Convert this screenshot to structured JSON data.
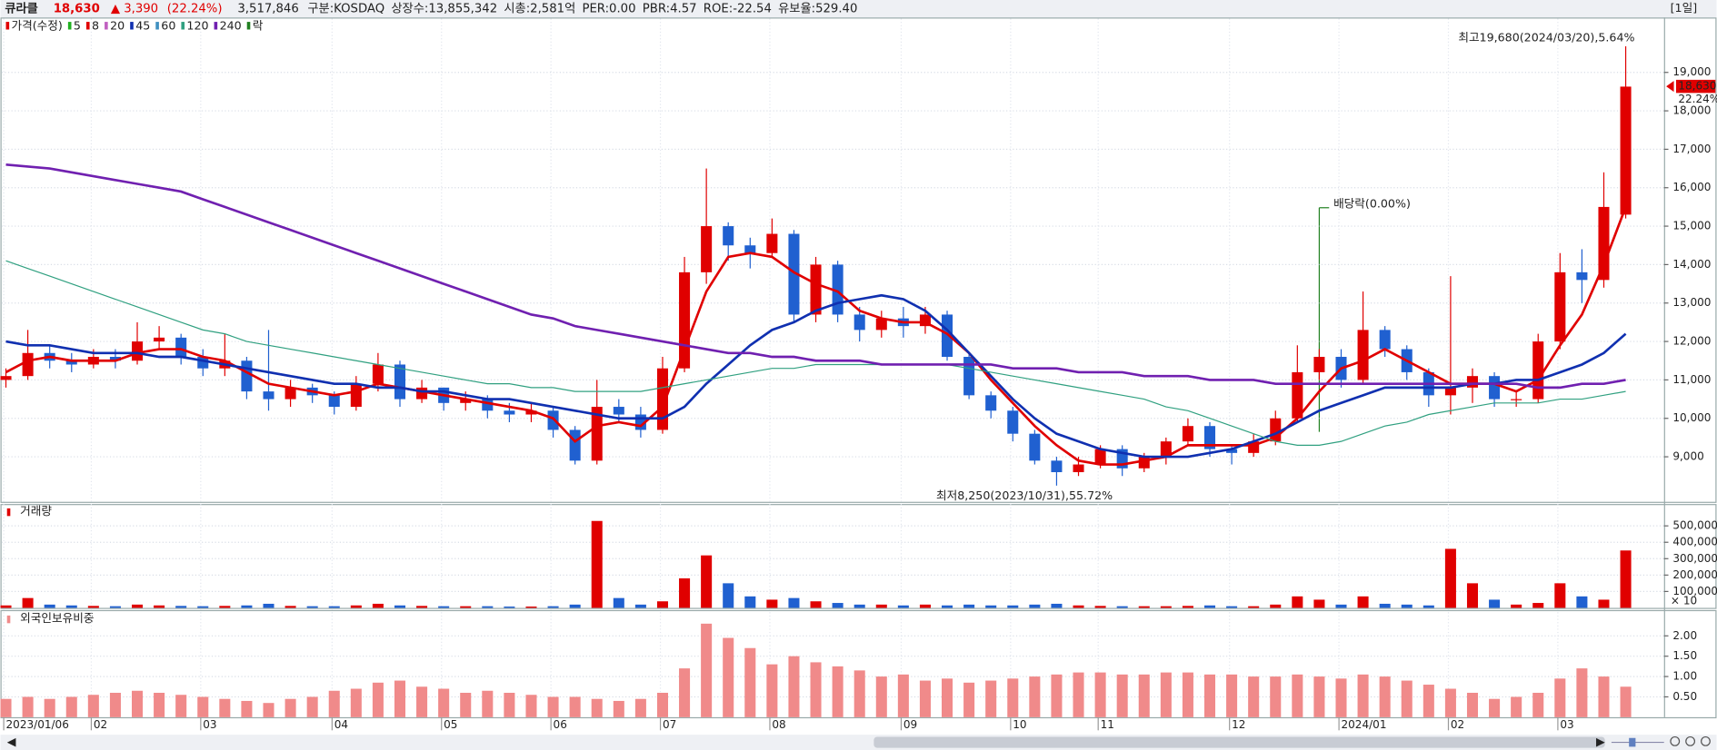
{
  "header": {
    "name": "큐라클",
    "price": "18,630",
    "change": "▲ 3,390",
    "change_pct": "(22.24%)",
    "volume": "3,517,846",
    "market": "구분:KOSDAQ",
    "shares": "상장수:13,855,342",
    "cap": "시총:2,581억",
    "per": "PER:0.00",
    "pbr": "PBR:4.57",
    "roe": "ROE:-22.54",
    "reserve": "유보율:529.40",
    "period": "[1일]"
  },
  "chart_data": [
    {
      "type": "candlestick",
      "legend_label": "가격(수정)",
      "ex_label": "락",
      "categories": [
        "2023/01/06",
        null,
        null,
        null,
        "02",
        null,
        null,
        null,
        null,
        "03",
        null,
        null,
        null,
        null,
        null,
        "04",
        null,
        null,
        null,
        null,
        "05",
        null,
        null,
        null,
        null,
        "06",
        null,
        null,
        null,
        null,
        "07",
        null,
        null,
        null,
        null,
        "08",
        null,
        null,
        null,
        null,
        null,
        "09",
        null,
        null,
        null,
        null,
        "10",
        null,
        null,
        null,
        "11",
        null,
        null,
        null,
        null,
        null,
        "12",
        null,
        null,
        null,
        null,
        "2024/01",
        null,
        null,
        null,
        null,
        "02",
        null,
        null,
        null,
        null,
        "03",
        null,
        null,
        null
      ],
      "open": [
        11000,
        11100,
        11700,
        11500,
        11400,
        11600,
        11500,
        12000,
        12100,
        11600,
        11300,
        11500,
        10700,
        10500,
        10800,
        10600,
        10300,
        10900,
        11400,
        10500,
        10800,
        10400,
        10500,
        10200,
        10100,
        10200,
        9700,
        8900,
        10300,
        10100,
        9700,
        11300,
        13800,
        15000,
        14500,
        14300,
        14800,
        12700,
        14000,
        12700,
        12300,
        12600,
        12400,
        12700,
        11600,
        10600,
        10200,
        9600,
        8900,
        8600,
        8800,
        9200,
        8700,
        9000,
        9400,
        9800,
        9200,
        9100,
        9400,
        10000,
        11200,
        11600,
        11000,
        12300,
        11800,
        11200,
        10600,
        10800,
        11100,
        10500,
        10500,
        12000,
        13800,
        13600,
        15300
      ],
      "high": [
        11300,
        12300,
        11900,
        11700,
        11800,
        11800,
        12500,
        12400,
        12200,
        11800,
        12200,
        11600,
        12300,
        11000,
        10900,
        10700,
        11100,
        11700,
        11500,
        11000,
        10800,
        10700,
        10600,
        10400,
        10400,
        10300,
        9800,
        11000,
        10500,
        10300,
        11600,
        14200,
        16500,
        15100,
        14700,
        15200,
        14900,
        14200,
        14100,
        12900,
        12800,
        12900,
        12900,
        12800,
        11700,
        10700,
        10300,
        9700,
        9000,
        9000,
        9300,
        9300,
        9100,
        9500,
        10000,
        9900,
        9300,
        9600,
        10200,
        11900,
        11800,
        11800,
        13300,
        12400,
        11900,
        11300,
        13700,
        11300,
        11200,
        10700,
        12200,
        14300,
        14400,
        16400,
        19680
      ],
      "low": [
        10800,
        11000,
        11300,
        11200,
        11300,
        11300,
        11400,
        11800,
        11400,
        11100,
        11100,
        10500,
        10200,
        10300,
        10400,
        10100,
        10200,
        10700,
        10300,
        10400,
        10200,
        10200,
        10000,
        9900,
        9900,
        9500,
        8800,
        8800,
        9900,
        9500,
        9600,
        11200,
        13500,
        14100,
        13900,
        14200,
        12500,
        12500,
        12500,
        12000,
        12100,
        12100,
        12200,
        11500,
        10500,
        10000,
        9400,
        8800,
        8250,
        8500,
        8700,
        8500,
        8600,
        8800,
        9300,
        9000,
        8800,
        9000,
        9300,
        9900,
        11000,
        10800,
        10900,
        11600,
        11000,
        10300,
        10100,
        10400,
        10300,
        10300,
        10400,
        11800,
        13000,
        13400,
        15200
      ],
      "close": [
        11100,
        11700,
        11500,
        11400,
        11600,
        11500,
        12000,
        12100,
        11600,
        11300,
        11500,
        10700,
        10500,
        10800,
        10600,
        10300,
        10900,
        11400,
        10500,
        10800,
        10400,
        10500,
        10200,
        10100,
        10200,
        9700,
        8900,
        10300,
        10100,
        9700,
        11300,
        13800,
        15000,
        14500,
        14300,
        14800,
        12700,
        14000,
        12700,
        12300,
        12600,
        12400,
        12700,
        11600,
        10600,
        10200,
        9600,
        8900,
        8600,
        8800,
        9200,
        8700,
        9000,
        9400,
        9800,
        9200,
        9100,
        9400,
        10000,
        11200,
        11600,
        11000,
        12300,
        11800,
        11200,
        10600,
        10800,
        11100,
        10500,
        10500,
        12000,
        13800,
        13600,
        15500,
        18630
      ],
      "up_color": "#e00000",
      "down_color": "#2060d0",
      "series": [
        {
          "name": "5",
          "color": "#20b020"
        },
        {
          "name": "8",
          "color": "#e00000",
          "width": 2.2,
          "values": [
            11200,
            11500,
            11600,
            11500,
            11500,
            11500,
            11700,
            11800,
            11800,
            11600,
            11500,
            11200,
            10900,
            10800,
            10700,
            10600,
            10700,
            10900,
            10800,
            10700,
            10600,
            10500,
            10400,
            10300,
            10200,
            10000,
            9400,
            9800,
            9900,
            9800,
            10300,
            11800,
            13300,
            14200,
            14300,
            14200,
            13800,
            13500,
            13300,
            12800,
            12600,
            12500,
            12500,
            12200,
            11700,
            11000,
            10400,
            9800,
            9300,
            8900,
            8800,
            8800,
            8900,
            9000,
            9300,
            9300,
            9300,
            9300,
            9500,
            10000,
            10700,
            11300,
            11500,
            11800,
            11500,
            11200,
            10900,
            10900,
            10900,
            10700,
            11000,
            11900,
            12700,
            14000,
            15500
          ]
        },
        {
          "name": "20",
          "color": "#c060c0"
        },
        {
          "name": "45",
          "color": "#1030b0",
          "width": 2.2,
          "values": [
            12000,
            11900,
            11900,
            11800,
            11700,
            11700,
            11700,
            11600,
            11600,
            11500,
            11400,
            11300,
            11200,
            11100,
            11000,
            10900,
            10900,
            10800,
            10800,
            10700,
            10700,
            10600,
            10500,
            10500,
            10400,
            10300,
            10200,
            10100,
            10000,
            10000,
            10000,
            10300,
            10900,
            11400,
            11900,
            12300,
            12500,
            12800,
            13000,
            13100,
            13200,
            13100,
            12800,
            12300,
            11700,
            11100,
            10500,
            10000,
            9600,
            9400,
            9200,
            9100,
            9000,
            9000,
            9000,
            9100,
            9200,
            9400,
            9600,
            9900,
            10200,
            10400,
            10600,
            10800,
            10800,
            10800,
            10800,
            10900,
            10900,
            11000,
            11000,
            11200,
            11400,
            11700,
            12200
          ]
        },
        {
          "name": "60",
          "color": "#4090c0"
        },
        {
          "name": "120",
          "color": "#30a080",
          "width": 1,
          "values": [
            14100,
            13900,
            13700,
            13500,
            13300,
            13100,
            12900,
            12700,
            12500,
            12300,
            12200,
            12000,
            11900,
            11800,
            11700,
            11600,
            11500,
            11400,
            11300,
            11200,
            11100,
            11000,
            10900,
            10900,
            10800,
            10800,
            10700,
            10700,
            10700,
            10700,
            10800,
            10900,
            11000,
            11100,
            11200,
            11300,
            11300,
            11400,
            11400,
            11400,
            11400,
            11400,
            11400,
            11400,
            11300,
            11200,
            11100,
            11000,
            10900,
            10800,
            10700,
            10600,
            10500,
            10300,
            10200,
            10000,
            9800,
            9600,
            9400,
            9300,
            9300,
            9400,
            9600,
            9800,
            9900,
            10100,
            10200,
            10300,
            10400,
            10400,
            10400,
            10500,
            10500,
            10600,
            10700
          ]
        },
        {
          "name": "240",
          "color": "#7020b0",
          "width": 2.2,
          "values": [
            16600,
            16550,
            16500,
            16400,
            16300,
            16200,
            16100,
            16000,
            15900,
            15700,
            15500,
            15300,
            15100,
            14900,
            14700,
            14500,
            14300,
            14100,
            13900,
            13700,
            13500,
            13300,
            13100,
            12900,
            12700,
            12600,
            12400,
            12300,
            12200,
            12100,
            12000,
            11900,
            11800,
            11700,
            11700,
            11600,
            11600,
            11500,
            11500,
            11500,
            11400,
            11400,
            11400,
            11400,
            11400,
            11400,
            11300,
            11300,
            11300,
            11200,
            11200,
            11200,
            11100,
            11100,
            11100,
            11000,
            11000,
            11000,
            10900,
            10900,
            10900,
            10900,
            10900,
            10900,
            10900,
            10900,
            10900,
            10900,
            10900,
            10900,
            10800,
            10800,
            10900,
            10900,
            11000
          ]
        }
      ],
      "ylim": [
        7800,
        20400
      ],
      "yticks": [
        {
          "value": 9000,
          "label": "9,000"
        },
        {
          "value": 10000,
          "label": "10,000"
        },
        {
          "value": 11000,
          "label": "11,000"
        },
        {
          "value": 12000,
          "label": "12,000"
        },
        {
          "value": 13000,
          "label": "13,000"
        },
        {
          "value": 14000,
          "label": "14,000"
        },
        {
          "value": 15000,
          "label": "15,000"
        },
        {
          "value": 16000,
          "label": "16,000"
        },
        {
          "value": 17000,
          "label": "17,000"
        },
        {
          "value": 18000,
          "label": "18,000"
        },
        {
          "value": 19000,
          "label": "19,000"
        }
      ],
      "last_label": "18,630",
      "last_change": "22.24%",
      "annotations": {
        "high": "최고19,680(2024/03/20),5.64%",
        "low": "최저8,250(2023/10/31),55.72%",
        "dividend": "배당락(0.00%)"
      }
    },
    {
      "type": "bar",
      "title": "거래량",
      "unit_label": "× 10",
      "values": [
        15000,
        60000,
        20000,
        15000,
        12000,
        10000,
        20000,
        15000,
        12000,
        10000,
        12000,
        15000,
        25000,
        12000,
        10000,
        10000,
        15000,
        25000,
        15000,
        12000,
        10000,
        10000,
        10000,
        8000,
        8000,
        10000,
        20000,
        530000,
        60000,
        20000,
        40000,
        180000,
        320000,
        150000,
        70000,
        50000,
        60000,
        40000,
        30000,
        20000,
        20000,
        15000,
        20000,
        15000,
        20000,
        15000,
        15000,
        20000,
        25000,
        15000,
        12000,
        10000,
        10000,
        10000,
        12000,
        15000,
        10000,
        10000,
        20000,
        70000,
        50000,
        20000,
        70000,
        25000,
        20000,
        15000,
        360000,
        150000,
        50000,
        20000,
        30000,
        150000,
        70000,
        50000,
        350000
      ],
      "ylim": [
        0,
        600000
      ],
      "yticks": [
        {
          "value": 100000,
          "label": "100,000"
        },
        {
          "value": 200000,
          "label": "200,000"
        },
        {
          "value": 300000,
          "label": "300,000"
        },
        {
          "value": 400000,
          "label": "400,000"
        },
        {
          "value": 500000,
          "label": "500,000"
        }
      ]
    },
    {
      "type": "bar",
      "title": "외국인보유비중",
      "color": "#f08a8a",
      "values": [
        0.45,
        0.5,
        0.45,
        0.5,
        0.55,
        0.6,
        0.65,
        0.6,
        0.55,
        0.5,
        0.45,
        0.4,
        0.35,
        0.45,
        0.5,
        0.65,
        0.7,
        0.85,
        0.9,
        0.75,
        0.7,
        0.6,
        0.65,
        0.6,
        0.55,
        0.5,
        0.5,
        0.45,
        0.4,
        0.45,
        0.6,
        1.2,
        2.3,
        1.95,
        1.7,
        1.3,
        1.5,
        1.35,
        1.25,
        1.15,
        1.0,
        1.05,
        0.9,
        0.95,
        0.85,
        0.9,
        0.95,
        1.0,
        1.05,
        1.1,
        1.1,
        1.05,
        1.05,
        1.1,
        1.1,
        1.05,
        1.05,
        1.0,
        1.0,
        1.05,
        1.0,
        0.95,
        1.05,
        1.0,
        0.9,
        0.8,
        0.7,
        0.6,
        0.45,
        0.5,
        0.6,
        0.95,
        1.2,
        1.0,
        0.75
      ],
      "ylim": [
        0,
        2.5
      ],
      "yticks": [
        {
          "value": 0.5,
          "label": "0.50"
        },
        {
          "value": 1,
          "label": "1.00"
        },
        {
          "value": 1.5,
          "label": "1.50"
        },
        {
          "value": 2,
          "label": "2.00"
        }
      ]
    }
  ]
}
